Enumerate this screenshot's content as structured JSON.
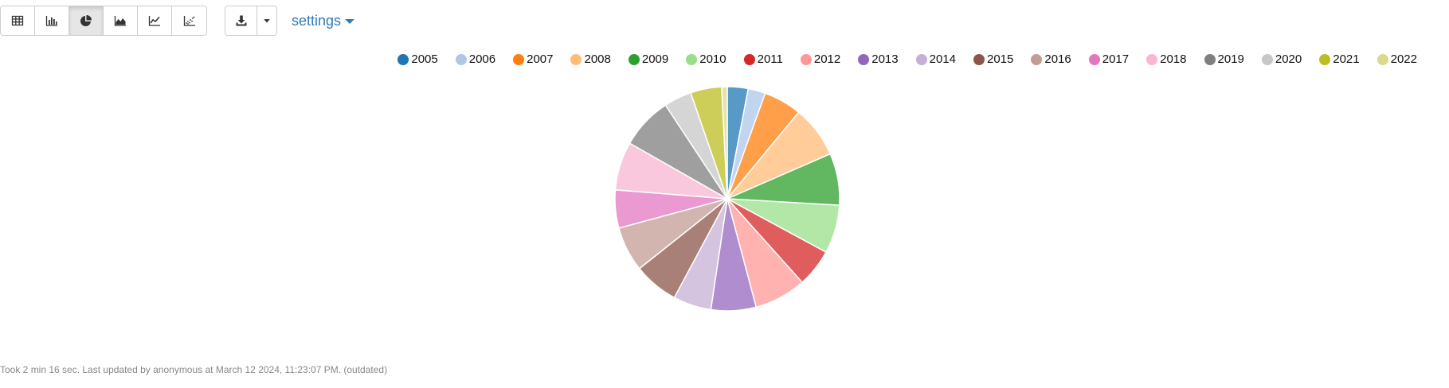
{
  "toolbar": {
    "view_buttons": [
      {
        "name": "table-view-button",
        "icon": "table-icon",
        "active": false
      },
      {
        "name": "bar-chart-view-button",
        "icon": "bar-chart-icon",
        "active": false
      },
      {
        "name": "pie-chart-view-button",
        "icon": "pie-chart-icon",
        "active": true
      },
      {
        "name": "area-chart-view-button",
        "icon": "area-chart-icon",
        "active": false
      },
      {
        "name": "line-chart-view-button",
        "icon": "line-chart-icon",
        "active": false
      },
      {
        "name": "scatter-chart-view-button",
        "icon": "scatter-chart-icon",
        "active": false
      }
    ],
    "download_icon": "download-icon",
    "dropdown_icon": "caret-down-icon",
    "settings_label": "settings"
  },
  "chart_data": {
    "type": "pie",
    "categories": [
      "2005",
      "2006",
      "2007",
      "2008",
      "2009",
      "2010",
      "2011",
      "2012",
      "2013",
      "2014",
      "2015",
      "2016",
      "2017",
      "2018",
      "2019",
      "2020",
      "2021",
      "2022"
    ],
    "values": [
      3.0,
      2.5,
      5.5,
      7.5,
      7.5,
      7.0,
      5.5,
      7.5,
      6.5,
      5.5,
      6.5,
      6.5,
      5.5,
      7.0,
      7.5,
      4.0,
      4.5,
      0.8
    ],
    "colors": [
      "#1f77b4",
      "#aec7e8",
      "#ff7f0e",
      "#ffbb78",
      "#2ca02c",
      "#98df8a",
      "#d62728",
      "#ff9896",
      "#9467bd",
      "#c5b0d5",
      "#8c564b",
      "#c49c94",
      "#e377c2",
      "#f7b6d2",
      "#7f7f7f",
      "#c7c7c7",
      "#bcbd22",
      "#dbdb8d"
    ],
    "legend_position": "top-right"
  },
  "footer": {
    "status": "Took 2 min 16 sec. Last updated by anonymous at March 12 2024, 11:23:07 PM. (outdated)"
  }
}
